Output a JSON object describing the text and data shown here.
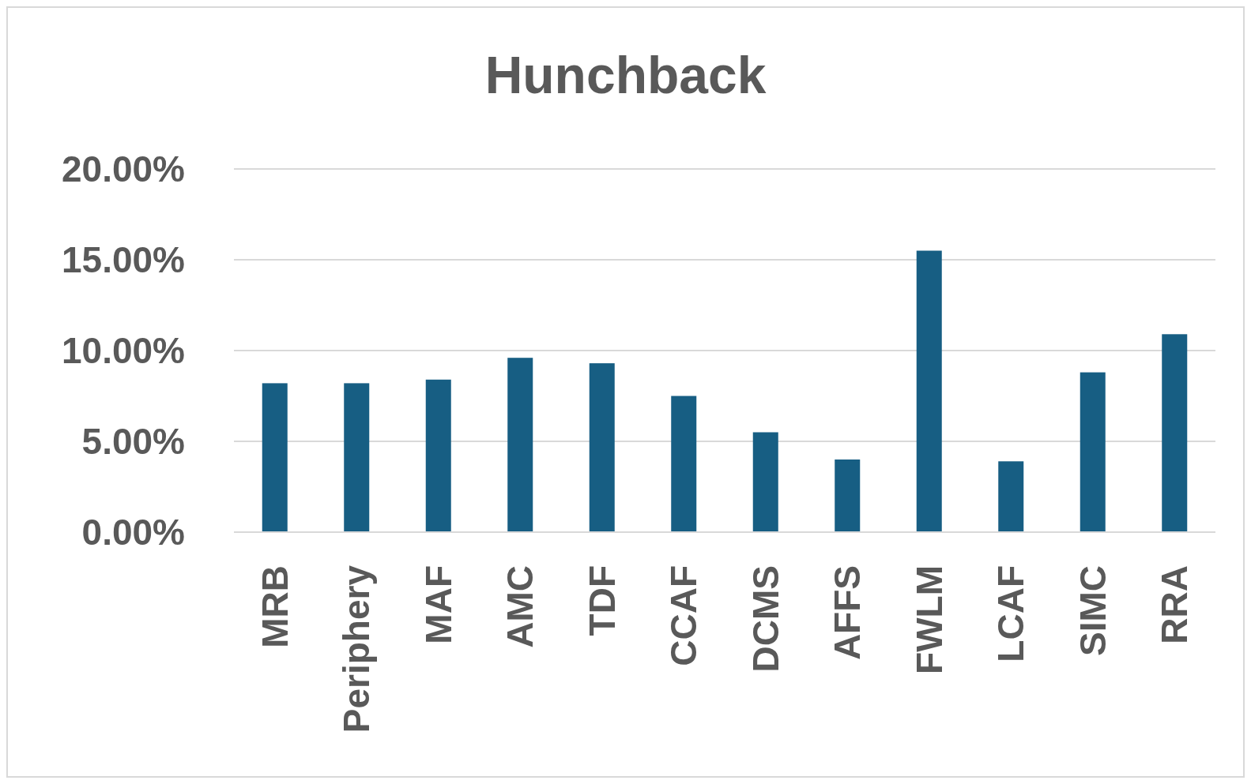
{
  "chart_data": {
    "type": "bar",
    "title": "Hunchback",
    "categories": [
      "MRB",
      "Periphery",
      "MAF",
      "AMC",
      "TDF",
      "CCAF",
      "DCMS",
      "AFFS",
      "FWLM",
      "LCAF",
      "SIMC",
      "RRA"
    ],
    "values": [
      8.2,
      8.2,
      8.4,
      9.6,
      9.3,
      7.5,
      5.5,
      4.0,
      15.5,
      3.9,
      8.8,
      10.9
    ],
    "color": "#175e83",
    "ylim": [
      0,
      20
    ],
    "yticks": [
      {
        "value": 0,
        "label": "0.00%"
      },
      {
        "value": 5,
        "label": "5.00%"
      },
      {
        "value": 10,
        "label": "10.00%"
      },
      {
        "value": 15,
        "label": "15.00%"
      },
      {
        "value": 20,
        "label": "20.00%"
      }
    ],
    "grid": "y"
  }
}
